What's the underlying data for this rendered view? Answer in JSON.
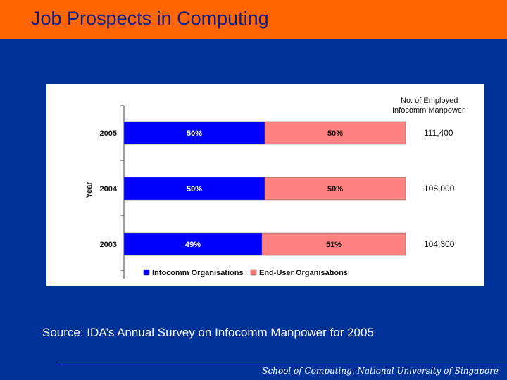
{
  "slide": {
    "title": "Job Prospects in Computing",
    "source": "Source: IDA’s Annual Survey on Infocomm Manpower for 2005",
    "footer": "School of Computing, National University of Singapore"
  },
  "colors": {
    "title_bar": "#ff6600",
    "background": "#003399",
    "infocomm": "#0000ff",
    "end_user": "#ff8080"
  },
  "chart_data": {
    "type": "bar",
    "orientation": "horizontal",
    "stacked": true,
    "ylabel": "Year",
    "categories": [
      "2005",
      "2004",
      "2003"
    ],
    "series": [
      {
        "name": "Infocomm Organisations",
        "values": [
          50,
          50,
          49
        ],
        "labels": [
          "50%",
          "50%",
          "49%"
        ],
        "color": "#0000ff"
      },
      {
        "name": "End-User Organisations",
        "values": [
          50,
          50,
          51
        ],
        "labels": [
          "50%",
          "50%",
          "51%"
        ],
        "color": "#ff8080"
      }
    ],
    "right_header": [
      "No. of Employed",
      "Infocomm Manpower"
    ],
    "right_values": [
      "111,400",
      "108,000",
      "104,300"
    ],
    "legend": {
      "position": "bottom-left"
    }
  }
}
